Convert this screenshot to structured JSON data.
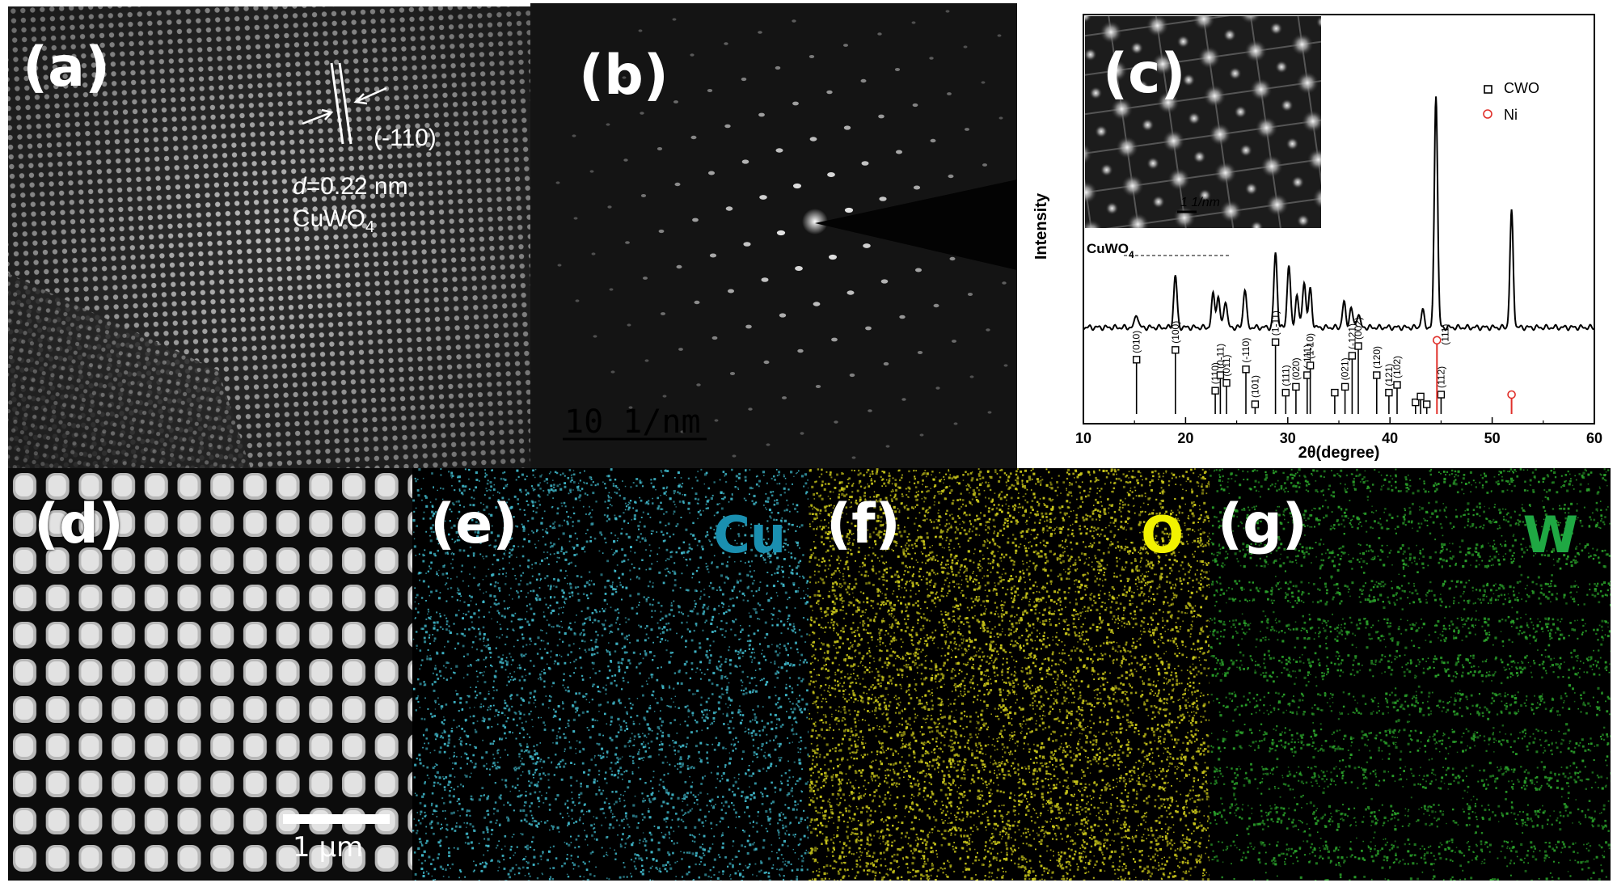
{
  "panels": {
    "a": {
      "label": "(a)",
      "plane": "(-110)",
      "d_symbol": "d",
      "d_value": "=0.22 nm",
      "compound_base": "CuWO",
      "compound_sub": "4"
    },
    "b": {
      "label": "(b)",
      "scalebar": "10 1/nm"
    },
    "c": {
      "label": "(c)",
      "inset_scalebar": "1 1/nm"
    },
    "d": {
      "label": "(d)",
      "scalebar": "1 μm"
    },
    "e": {
      "label": "(e)",
      "element": "Cu",
      "color": "#1a8fb0",
      "dot_color": "#3fb6c8"
    },
    "f": {
      "label": "(f)",
      "element": "O",
      "color": "#f2f200",
      "dot_color": "#c9c61a"
    },
    "g": {
      "label": "(g)",
      "element": "W",
      "color": "#1fa843",
      "dot_color": "#2aa02a"
    }
  },
  "chart_data": {
    "type": "line",
    "xlabel": "2θ(degree)",
    "ylabel": "Intensity",
    "xlim": [
      10,
      60
    ],
    "xticks": [
      10,
      20,
      30,
      40,
      50,
      60
    ],
    "grid": false,
    "legend_placement": "top-right",
    "curve_label_base": "CuWO",
    "curve_label_sub": "4",
    "legend": [
      {
        "name": "CWO",
        "marker": "square",
        "color": "#000000"
      },
      {
        "name": "Ni",
        "marker": "circle",
        "color": "#e0302a"
      }
    ],
    "series": [
      {
        "name": "CuWO4",
        "peaks": [
          {
            "x": 15.2,
            "h": 0.05
          },
          {
            "x": 19.0,
            "h": 0.19
          },
          {
            "x": 22.7,
            "h": 0.12
          },
          {
            "x": 23.2,
            "h": 0.11
          },
          {
            "x": 23.9,
            "h": 0.1
          },
          {
            "x": 25.8,
            "h": 0.14
          },
          {
            "x": 28.8,
            "h": 0.27
          },
          {
            "x": 30.1,
            "h": 0.23
          },
          {
            "x": 30.9,
            "h": 0.12
          },
          {
            "x": 31.6,
            "h": 0.17
          },
          {
            "x": 32.2,
            "h": 0.14
          },
          {
            "x": 35.5,
            "h": 0.09
          },
          {
            "x": 36.2,
            "h": 0.07
          },
          {
            "x": 36.9,
            "h": 0.05
          },
          {
            "x": 43.2,
            "h": 0.06
          },
          {
            "x": 44.5,
            "h": 0.85
          },
          {
            "x": 51.9,
            "h": 0.42
          }
        ]
      }
    ],
    "reference_cwo": [
      {
        "x": 15.2,
        "hkl": "(010)",
        "h": 0.28
      },
      {
        "x": 19.0,
        "hkl": "(100)",
        "h": 0.33
      },
      {
        "x": 22.9,
        "hkl": "(110)",
        "h": 0.12
      },
      {
        "x": 23.4,
        "hkl": "(0-11)",
        "h": 0.2
      },
      {
        "x": 24.0,
        "hkl": "(011)",
        "h": 0.16
      },
      {
        "x": 25.9,
        "hkl": "(-110)",
        "h": 0.23
      },
      {
        "x": 26.8,
        "hkl": "(101)",
        "h": 0.05
      },
      {
        "x": 28.8,
        "hkl": "(1-11)",
        "h": 0.37
      },
      {
        "x": 29.8,
        "hkl": "(111)",
        "h": 0.11
      },
      {
        "x": 30.8,
        "hkl": "(020)",
        "h": 0.14
      },
      {
        "x": 31.9,
        "hkl": "(-111)",
        "h": 0.2
      },
      {
        "x": 32.2,
        "hkl": "(1-10)",
        "h": 0.25
      },
      {
        "x": 34.6,
        "hkl": "",
        "h": 0.11
      },
      {
        "x": 35.6,
        "hkl": "(021)",
        "h": 0.14
      },
      {
        "x": 36.3,
        "hkl": "(-121)",
        "h": 0.3
      },
      {
        "x": 36.9,
        "hkl": "(002)",
        "h": 0.35
      },
      {
        "x": 38.7,
        "hkl": "(120)",
        "h": 0.2
      },
      {
        "x": 39.9,
        "hkl": "(121)",
        "h": 0.11
      },
      {
        "x": 40.7,
        "hkl": "(102)",
        "h": 0.15
      },
      {
        "x": 42.5,
        "hkl": "",
        "h": 0.06
      },
      {
        "x": 43.0,
        "hkl": "",
        "h": 0.09
      },
      {
        "x": 43.6,
        "hkl": "",
        "h": 0.05
      },
      {
        "x": 45.0,
        "hkl": "(112)",
        "h": 0.1
      }
    ],
    "reference_ni": [
      {
        "x": 44.6,
        "hkl": "(111)",
        "h": 0.38
      },
      {
        "x": 51.9,
        "hkl": "",
        "h": 0.1
      }
    ]
  }
}
